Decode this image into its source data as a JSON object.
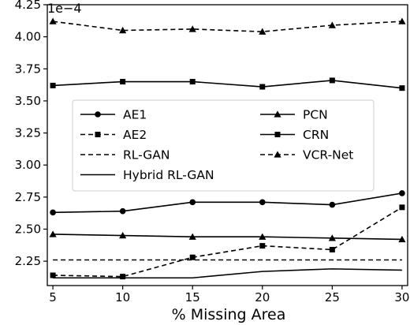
{
  "chart_data": {
    "type": "line",
    "xlabel": "% Missing Area",
    "ylabel": "",
    "y_offset_text": "1e−4",
    "x": [
      5,
      10,
      15,
      20,
      25,
      30
    ],
    "xlim": [
      4.6,
      30.4
    ],
    "ylim": [
      2.06,
      4.25
    ],
    "x_ticks": [
      5,
      10,
      15,
      20,
      25,
      30
    ],
    "x_tick_labels": [
      "5",
      "10",
      "15",
      "20",
      "25",
      "30"
    ],
    "y_ticks": [
      2.25,
      2.5,
      2.75,
      3.0,
      3.25,
      3.5,
      3.75,
      4.0,
      4.25
    ],
    "y_tick_labels": [
      "2.25",
      "2.50",
      "2.75",
      "3.00",
      "3.25",
      "3.50",
      "3.75",
      "4.00",
      "4.25"
    ],
    "grid": false,
    "legend_position": "center-left",
    "series": [
      {
        "name": "AE1",
        "values": [
          2.63,
          2.64,
          2.71,
          2.71,
          2.69,
          2.78
        ],
        "line": "solid",
        "marker": "circle"
      },
      {
        "name": "AE2",
        "values": [
          2.14,
          2.13,
          2.28,
          2.37,
          2.34,
          2.67
        ],
        "line": "dashed",
        "marker": "square"
      },
      {
        "name": "RL-GAN",
        "values": [
          2.26,
          2.26,
          2.26,
          2.26,
          2.26,
          2.26
        ],
        "line": "dashed",
        "marker": "none"
      },
      {
        "name": "Hybrid RL-GAN",
        "values": [
          2.12,
          2.12,
          2.12,
          2.17,
          2.19,
          2.18
        ],
        "line": "solid",
        "marker": "none"
      },
      {
        "name": "PCN",
        "values": [
          2.46,
          2.45,
          2.44,
          2.44,
          2.43,
          2.42
        ],
        "line": "solid",
        "marker": "triangle"
      },
      {
        "name": "CRN",
        "values": [
          3.62,
          3.65,
          3.65,
          3.61,
          3.66,
          3.6
        ],
        "line": "solid",
        "marker": "square"
      },
      {
        "name": "VCR-Net",
        "values": [
          4.12,
          4.05,
          4.06,
          4.04,
          4.09,
          4.12
        ],
        "line": "dashed",
        "marker": "triangle"
      }
    ],
    "legend_order": [
      "AE1",
      "PCN",
      "AE2",
      "CRN",
      "RL-GAN",
      "VCR-Net",
      "Hybrid RL-GAN"
    ],
    "colors": {
      "line": "#000000",
      "frame": "#000000",
      "background": "#ffffff",
      "legend_border": "#cccccc"
    }
  }
}
